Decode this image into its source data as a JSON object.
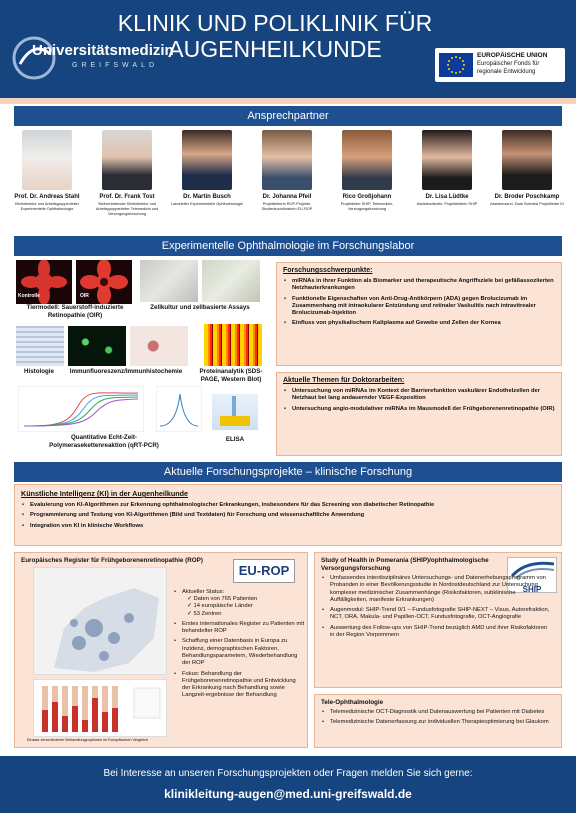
{
  "header": {
    "title": "KLINIK UND POLIKLINIK FÜR AUGENHEILKUNDE",
    "logo_text": "Universitätsmedizin",
    "logo_sub": "GREIFSWALD",
    "eu_title": "EUROPÄISCHE UNION",
    "eu_line1": "Europäischer Fonds für",
    "eu_line2": "regionale Entwicklung"
  },
  "contacts": {
    "heading": "Ansprechpartner",
    "people": [
      {
        "name": "Prof. Dr. Andreas Stahl",
        "role": "Klinikdirektor und Arbeitsgruppenleiter Experimentelle Ophthalmologie"
      },
      {
        "name": "Prof. Dr. Frank Tost",
        "role": "Stellvertretender Klinikdirektor und Arbeitsgruppenleiter Telemedizin und Versorgungsforschung"
      },
      {
        "name": "Dr. Martin Busch",
        "role": "Laborleiter Experimentelle Ophthalmologie"
      },
      {
        "name": "Dr. Johanna Pfeil",
        "role": "Projektleiterin ROP-Projekte, Studienkoordinatorin EU-ROP"
      },
      {
        "name": "Rico Großjohann",
        "role": "Projektleiter SHIP, Telemedizin, Versorgungsforschung"
      },
      {
        "name": "Dr. Lisa Lüdtke",
        "role": "Assistenzärztin, Projektleiterin SHIP"
      },
      {
        "name": "Dr. Broder Poschkamp",
        "role": "Assistenzarzt, Data Scientist Projektleiter KI"
      }
    ]
  },
  "lab": {
    "heading": "Experimentelle Ophthalmologie im Forschungslabor",
    "img_labels": {
      "kontrolle": "Kontrolle",
      "oir": "OIR"
    },
    "captions": {
      "tiermodell": "Tiermodell: Sauerstoff-induzierte Retinopathie (OIR)",
      "zellkultur": "Zellkultur und zellbasierte Assays",
      "histologie": "Histologie",
      "immun": "Immunfluoreszenz/Immunhistochemie",
      "protein": "Proteinanalytik (SDS-PAGE, Western Blot)",
      "qpcr": "Quantitative Echt-Zeit-Polymerasekettenreaktion (qRT-PCR)",
      "elisa": "ELISA"
    },
    "schwerpunkte_title": "Forschungsschwerpunkte:",
    "schwerpunkte": [
      "miRNAs in ihrer Funktion als Biomarker und therapeutische Angriffsziele bei gefäßassoziierten Netzhauterkrankungen",
      "Funktionelle Eigenschaften von Anti-Drug-Antikörpern (ADA) gegen Brolucizumab im Zusammenhang mit intraokularer Entzündung und retinaler Vaskulitis nach intravitrealer Brolucizumab-Injektion",
      "Einfluss von physikalischem Kaltplasma auf Gewebe und Zellen der Kornea"
    ],
    "themen_title": "Aktuelle Themen für Doktorarbeiten:",
    "themen": [
      "Untersuchung von miRNAs im Kontext der Barrierefunktion vaskulärer Endothelzellen der Netzhaut bei lang andauernder VEGF-Exposition",
      "Untersuchung angio-modulativer miRNAs im Mausmodell der Frühgeborenenretinopathie (OIR)"
    ]
  },
  "projects": {
    "heading": "Aktuelle Forschungsprojekte – klinische Forschung",
    "ki_title": "Künstliche Intelligenz (KI) in der Augenheilkunde",
    "ki_items": [
      "Evaluierung von KI-Algorithmen zur Erkennung ophthalmologischer Erkrankungen, insbesondere für das Screening von diabetischer Retinopathie",
      "Programmierung und Testung von KI-Algorithmen (Bild und Textdaten) für Forschung und wissenschaftliche Anwendung",
      "Integration von KI in klinische Workflows"
    ],
    "rop": {
      "title": "Europäisches Register für Frühgeborenenretinopathie (ROP)",
      "logo": "EU-ROP",
      "status": "Aktueller Status:",
      "checks": [
        "Daten von 765 Patienten",
        "14 europäische Länder",
        "53 Zentren"
      ],
      "items": [
        "Erstes internationales Register zu Patienten mit behandelter ROP",
        "Schaffung einer Datenbasis in Europa zu Inzidenz, demographischen Faktoren, Behandlungsparametern, Wiederbehandlung der ROP",
        "Fokus: Behandlung der Frühgeborenenretinopathie und Entwicklung der Erkrankung nach Behandlung sowie Langzeit-ergebnisse der Behandlung"
      ],
      "chart_caption": "Einsatz verschiedener Behandlungsoptionen im Europäischen Vergleich"
    },
    "ship": {
      "title": "Study of Health in Pomerania (SHIP)/ophthalmologische Versorgungsforschung",
      "logo": "SHIP",
      "items": [
        "Umfassendes interdisziplinäres Untersuchungs- und Datenerhebungsprogramm von Probanden in einer Bevölkerungsstudie in Nordostdeutschland zur Untersuchung komplexer medizinischer Zusammenhänge (Risikofaktoren, subklinische Auffälligkeiten, manifeste Erkrankungen)",
        "Augenmodul: SHIP-Trend 0/1 – Fundusfotografie SHIP-NEXT – Visus, Autorefraktion, NCT, ORA, Makula- und Papillen-OCT, Fundusfotografie, OCT-Angiografie",
        "Auswertung des Follow-ups von SHIP-Trend bezüglich AMD und ihrer Risikofaktoren in der Region Vorpommern"
      ]
    },
    "tele": {
      "title": "Tele-Ophthalmologie",
      "items": [
        "Telemedizinische OCT-Diagnostik und Datenauswertung bei Patienten mit Diabetes",
        "Telemedizinische Datenerfassung zur individuellen Therapieoptimierung bei Glaukom"
      ]
    }
  },
  "footer": {
    "text": "Bei Interesse an unseren Forschungsprojekten oder Fragen melden Sie sich gerne:",
    "email": "klinikleitung-augen@med.uni-greifswald.de"
  },
  "colors": {
    "header": "#16447f",
    "section": "#1d4f91",
    "peach": "#f4d3bd",
    "box": "#fbe4d5"
  }
}
